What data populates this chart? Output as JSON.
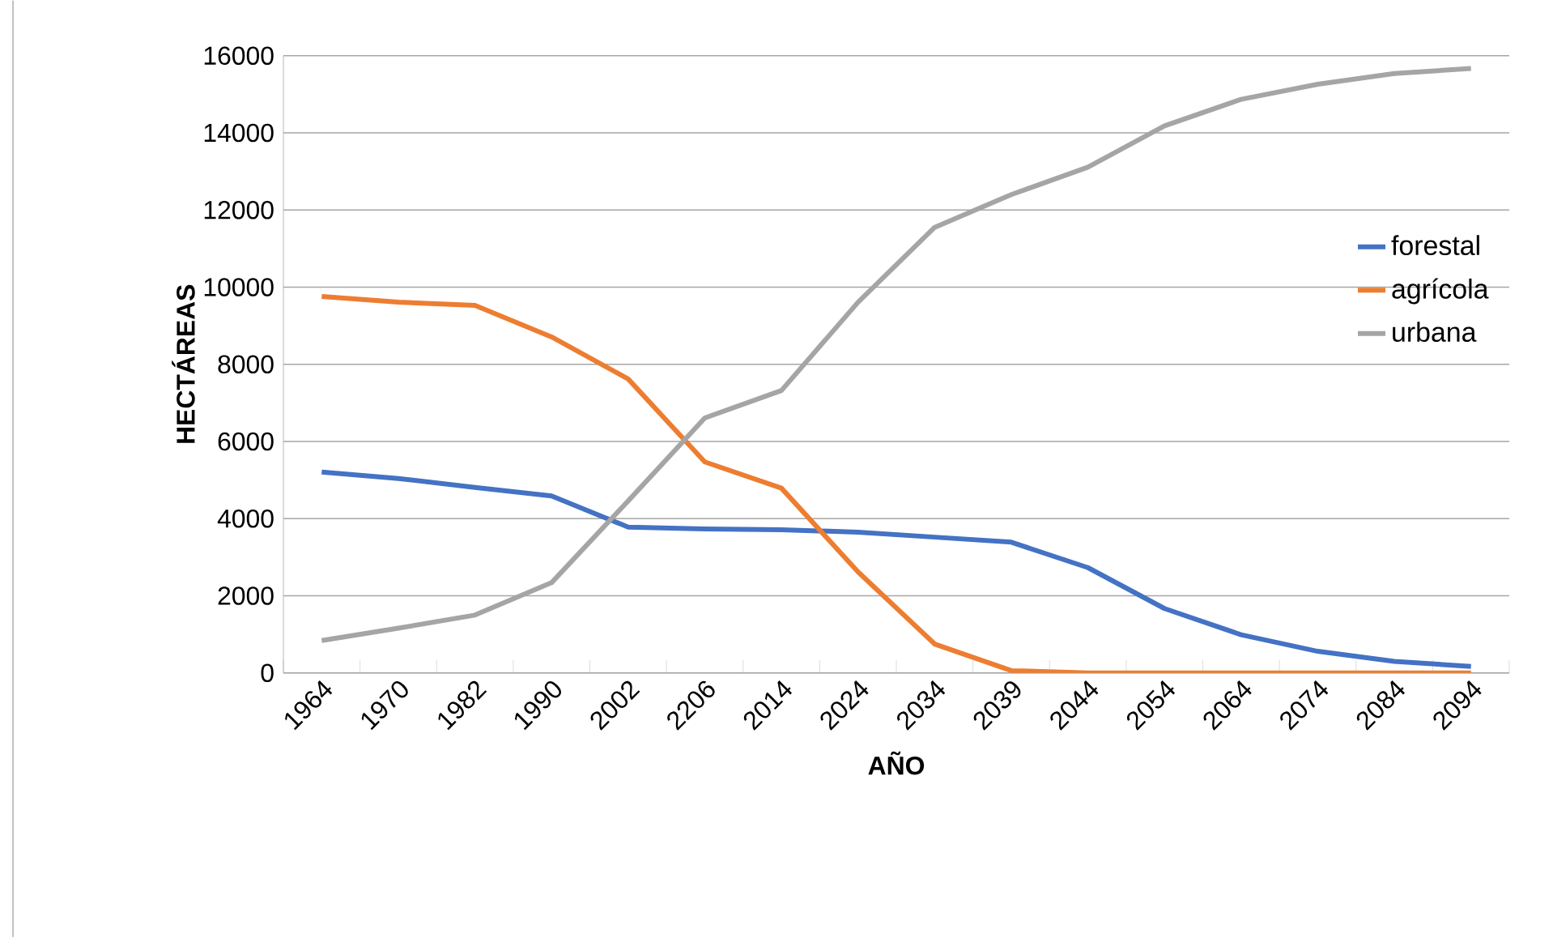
{
  "chart_data": {
    "type": "line",
    "xlabel": "AÑO",
    "ylabel": "HECTÁREAS",
    "categories": [
      "1964",
      "1970",
      "1982",
      "1990",
      "2002",
      "2206",
      "2014",
      "2024",
      "2034",
      "2039",
      "2044",
      "2054",
      "2064",
      "2074",
      "2084",
      "2094"
    ],
    "series": [
      {
        "name": "forestal",
        "color": "#4472c4",
        "values": [
          5210,
          5040,
          4810,
          4590,
          3780,
          3730,
          3710,
          3650,
          3520,
          3390,
          2730,
          1670,
          990,
          560,
          300,
          170
        ]
      },
      {
        "name": "agrícola",
        "color": "#ed7d31",
        "values": [
          9760,
          9610,
          9530,
          8710,
          7620,
          5470,
          4790,
          2620,
          750,
          60,
          0,
          0,
          0,
          0,
          0,
          0
        ]
      },
      {
        "name": "urbana",
        "color": "#a5a5a5",
        "values": [
          840,
          1160,
          1500,
          2340,
          4460,
          6610,
          7320,
          9610,
          11550,
          12400,
          13110,
          14180,
          14870,
          15260,
          15540,
          15670
        ]
      }
    ],
    "ylim": [
      0,
      16000
    ],
    "yticks": [
      0,
      2000,
      4000,
      6000,
      8000,
      10000,
      12000,
      14000,
      16000
    ],
    "grid": "y",
    "legend": "right",
    "marker": "none",
    "line_style": "solid"
  }
}
